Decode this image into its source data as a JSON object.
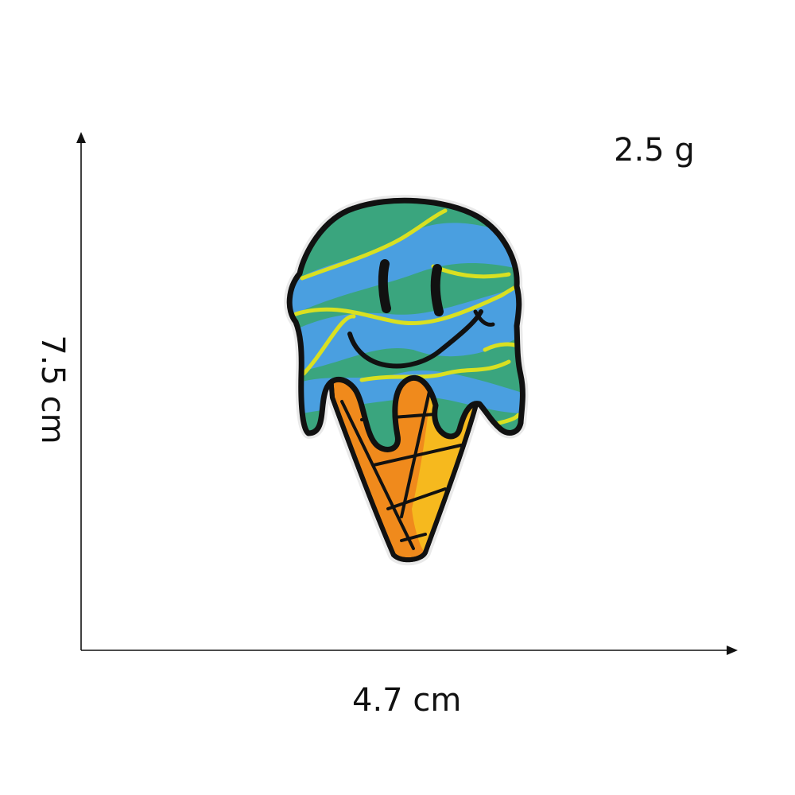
{
  "weight": "2.5 g",
  "width": "4.7 cm",
  "height": "7.5 cm",
  "product": {
    "icon": "melting-ice-cream-smiley-patch-icon",
    "colors": {
      "scoop_green": "#3aa57e",
      "scoop_blue": "#4a9fe0",
      "stripe_yellow": "#d9e021",
      "cone_orange": "#f08a1c",
      "cone_gold": "#f6b91e",
      "outline": "#111111"
    }
  },
  "axis_color": "#111111"
}
